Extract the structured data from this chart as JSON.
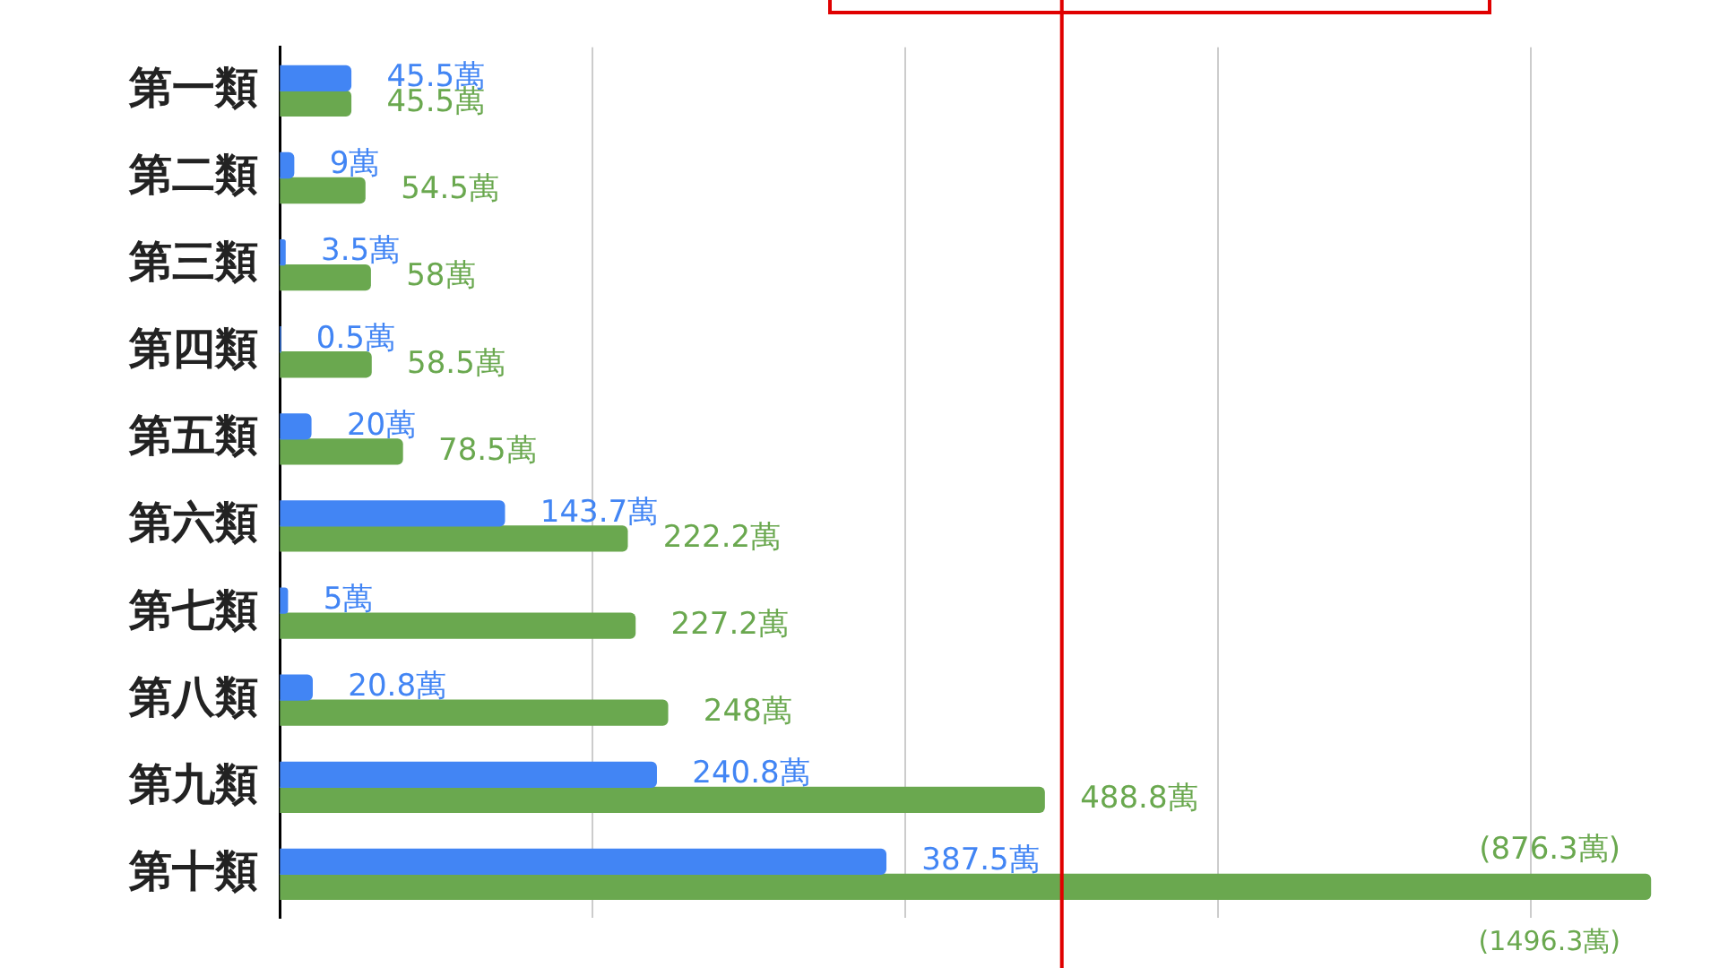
{
  "chart_data": {
    "type": "bar",
    "orientation": "horizontal",
    "categories": [
      "第一類",
      "第二類",
      "第三類",
      "第四類",
      "第五類",
      "第六類",
      "第七類",
      "第八類",
      "第九類",
      "第十類"
    ],
    "series": [
      {
        "color": "#4285f4",
        "values": [
          45.5,
          9,
          3.5,
          0.5,
          20,
          143.7,
          5,
          20.8,
          240.8,
          387.5
        ],
        "value_labels": [
          "45.5萬",
          "9萬",
          "3.5萬",
          "0.5萬",
          "20萬",
          "143.7萬",
          "5萬",
          "20.8萬",
          "240.8萬",
          "387.5萬"
        ]
      },
      {
        "color": "#6aa84f",
        "values": [
          45.5,
          54.5,
          58,
          58.5,
          78.5,
          222.2,
          227.2,
          248,
          488.8,
          876.3
        ],
        "value_labels": [
          "45.5萬",
          "54.5萬",
          "58萬",
          "58.5萬",
          "78.5萬",
          "222.2萬",
          "227.2萬",
          "248萬",
          "488.8萬",
          "(876.3萬)"
        ]
      }
    ],
    "xlim": [
      0,
      880
    ],
    "xticks": [
      {
        "value": 0,
        "label": null
      },
      {
        "value": 200,
        "label": null
      },
      {
        "value": 400,
        "label": null
      },
      {
        "value": 600,
        "label": null
      },
      {
        "value": 800,
        "label": null
      }
    ],
    "tick_labels": "y",
    "grid": "x",
    "legend": false,
    "ref_lines": [
      {
        "axis": "x",
        "value": 500,
        "color": "#e00000"
      }
    ],
    "annotations": [
      "(1496.3萬)"
    ]
  }
}
